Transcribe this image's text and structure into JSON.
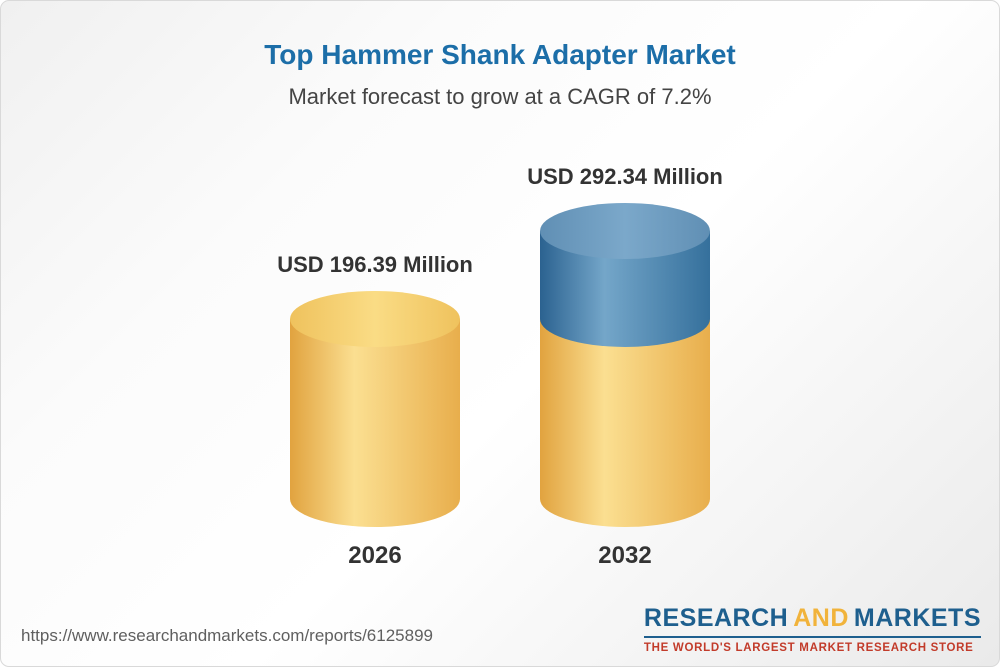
{
  "page": {
    "title": "Top Hammer Shank Adapter Market",
    "subtitle": "Market forecast to grow at a CAGR of 7.2%",
    "footer_url": "https://www.researchandmarkets.com/reports/6125899",
    "logo": {
      "research": "RESEARCH",
      "and": "AND",
      "markets": "MARKETS",
      "tagline": "THE WORLD'S LARGEST MARKET RESEARCH STORE"
    }
  },
  "colors": {
    "title_blue": "#1c6ea8",
    "text_dark": "#333333",
    "bar_yellow": "#f6c95c",
    "bar_growth_blue": "#39719d",
    "logo_blue": "#1e5f8e",
    "logo_gold": "#f1b33b",
    "tagline_red": "#c23b2a"
  },
  "chart_data": {
    "type": "bar",
    "title": "Top Hammer Shank Adapter Market",
    "subtitle": "Market forecast to grow at a CAGR of 7.2%",
    "cagr": "7.2%",
    "unit": "USD Million",
    "categories": [
      "2026",
      "2032"
    ],
    "values": [
      196.39,
      292.34
    ],
    "value_labels": [
      "USD 196.39 Million",
      "USD 292.34 Million"
    ],
    "ylim": [
      0,
      292.34
    ],
    "legend": "none",
    "style_note": "3D cylinder bars; 2032 bar shows base level in yellow and growth above the 2026 level in blue",
    "segment_colors": {
      "base": "#f6c95c",
      "growth": "#39719d"
    }
  }
}
